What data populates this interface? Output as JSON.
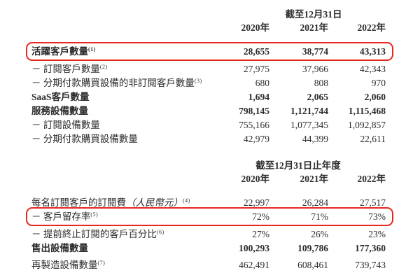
{
  "accent_color": "#e6281e",
  "table1": {
    "header": "截至12月31日",
    "years": [
      "2020年",
      "2021年",
      "2022年"
    ],
    "rows": [
      {
        "label": "活躍客戶數量",
        "sup": "(1)",
        "bold": true,
        "highlighted": true,
        "values": [
          "28,655",
          "38,774",
          "43,313"
        ]
      },
      {
        "label": "－ 訂閱客戶數量",
        "sup": "(2)",
        "bold": false,
        "highlighted": false,
        "values": [
          "27,975",
          "37,966",
          "42,343"
        ]
      },
      {
        "label": "－ 分期付款購買設備的非訂閱客戶數量",
        "sup": "(3)",
        "bold": false,
        "highlighted": false,
        "values": [
          "680",
          "808",
          "970"
        ]
      },
      {
        "label": "SaaS客戶數量",
        "bold": true,
        "highlighted": false,
        "values": [
          "1,694",
          "2,065",
          "2,060"
        ]
      },
      {
        "label": "服務設備數量",
        "bold": true,
        "highlighted": false,
        "values": [
          "798,145",
          "1,121,744",
          "1,115,468"
        ]
      },
      {
        "label": "－ 訂閱設備數量",
        "bold": false,
        "highlighted": false,
        "values": [
          "755,166",
          "1,077,345",
          "1,092,857"
        ]
      },
      {
        "label": "－ 分期付款購買設備數量",
        "bold": false,
        "highlighted": false,
        "values": [
          "42,979",
          "44,399",
          "22,611"
        ]
      }
    ]
  },
  "table2": {
    "header": "截至12月31日止年度",
    "years": [
      "2020年",
      "2021年",
      "2022年"
    ],
    "rows": [
      {
        "label": "每名訂閱客戶的訂閱費",
        "label_italic": "（人民幣元）",
        "sup": "(4)",
        "bold": false,
        "highlighted": false,
        "values": [
          "22,997",
          "26,284",
          "27,517"
        ]
      },
      {
        "label": "－ 客戶留存率",
        "sup": "(5)",
        "bold": false,
        "highlighted": true,
        "values": [
          "72%",
          "71%",
          "73%"
        ]
      },
      {
        "label": "－ 提前終止訂閱的客戶百分比",
        "sup": "(6)",
        "bold": false,
        "highlighted": false,
        "values": [
          "27%",
          "26%",
          "23%"
        ]
      },
      {
        "label": "售出設備數量",
        "bold": true,
        "highlighted": false,
        "values": [
          "100,293",
          "109,786",
          "177,360"
        ]
      },
      {
        "label": "再製造設備數量",
        "sup": "(7)",
        "bold": false,
        "highlighted": false,
        "values": [
          "462,491",
          "608,461",
          "739,743"
        ]
      }
    ]
  }
}
